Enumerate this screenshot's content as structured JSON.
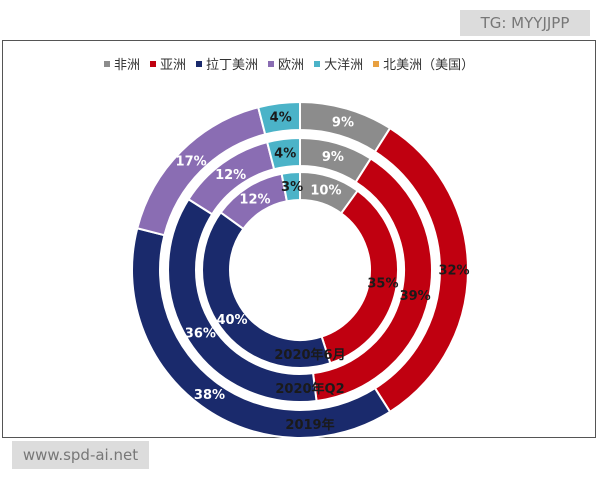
{
  "watermarks": {
    "top_right": "TG: MYYJJPP",
    "bottom_left": "www.spd-ai.net"
  },
  "chart_data": {
    "type": "pie",
    "subtype": "nested-donut",
    "title": "",
    "legend_position": "top",
    "categories": [
      "非洲",
      "亚洲",
      "拉丁美洲",
      "欧洲",
      "大洋洲",
      "北美洲（美国）"
    ],
    "colors": [
      "#8c8c8c",
      "#c00010",
      "#1a2a6c",
      "#8a6db3",
      "#4bb3c8",
      "#e8a040"
    ],
    "series": [
      {
        "name": "2020年6月",
        "values": [
          10,
          35,
          40,
          12,
          3,
          0
        ],
        "labels": [
          "10%",
          "35%",
          "40%",
          "12%",
          "3%",
          ""
        ]
      },
      {
        "name": "2020年Q2",
        "values": [
          9,
          39,
          36,
          12,
          4,
          0
        ],
        "labels": [
          "9%",
          "39%",
          "36%",
          "12%",
          "4%",
          ""
        ]
      },
      {
        "name": "2019年",
        "values": [
          9,
          32,
          38,
          17,
          4,
          0
        ],
        "labels": [
          "9%",
          "32%",
          "38%",
          "17%",
          "4%",
          ""
        ]
      }
    ]
  }
}
